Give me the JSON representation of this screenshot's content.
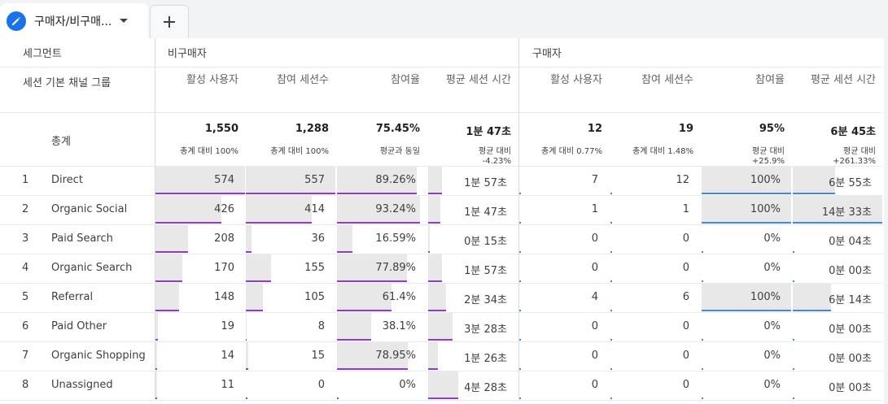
{
  "tab": {
    "label": "구매자/비구매..."
  },
  "segment_header": "세그먼트",
  "groups": [
    "비구매자",
    "구매자"
  ],
  "dimension_header": "세션 기본 채널 그룹",
  "metrics": [
    "활성 사용자",
    "참여 세션수",
    "참여율",
    "평균 세션 시간"
  ],
  "totals": {
    "label": "총계",
    "cells": [
      {
        "value": "1,550",
        "sub": "총계 대비 100%"
      },
      {
        "value": "1,288",
        "sub": "총계 대비 100%"
      },
      {
        "value": "75.45%",
        "sub": "평균과 동일"
      },
      {
        "value": "1분 47초",
        "sub": "평균 대비",
        "sub2": "-4.23%"
      },
      {
        "value": "12",
        "sub": "총계 대비 0.77%"
      },
      {
        "value": "19",
        "sub": "총계 대비 1.48%"
      },
      {
        "value": "95%",
        "sub": "평균 대비",
        "sub2": "+25.9%"
      },
      {
        "value": "6분 45초",
        "sub": "평균 대비",
        "sub2": "+261.33%"
      }
    ]
  },
  "accent": {
    "nonbuyer": "#9334e6",
    "buyer": "#4285f4",
    "bar_fill": "#e8e8e8"
  },
  "rows": [
    {
      "idx": "1",
      "channel": "Direct",
      "cells": [
        "574",
        "557",
        "89.26%",
        "1분 57초",
        "7",
        "12",
        "100%",
        "6분 55초"
      ],
      "fill": [
        1.0,
        1.0,
        0.89,
        0.15,
        0.0,
        0.0,
        1.0,
        0.47
      ]
    },
    {
      "idx": "2",
      "channel": "Organic Social",
      "cells": [
        "426",
        "414",
        "93.24%",
        "1분 47초",
        "1",
        "1",
        "100%",
        "14분 33초"
      ],
      "fill": [
        0.74,
        0.74,
        0.93,
        0.14,
        0.0,
        0.0,
        1.0,
        1.0
      ]
    },
    {
      "idx": "3",
      "channel": "Paid Search",
      "cells": [
        "208",
        "36",
        "16.59%",
        "0분 15초",
        "0",
        "0",
        "0%",
        "0분 04초"
      ],
      "fill": [
        0.36,
        0.06,
        0.17,
        0.02,
        0.0,
        0.0,
        0.0,
        0.0
      ]
    },
    {
      "idx": "4",
      "channel": "Organic Search",
      "cells": [
        "170",
        "155",
        "77.89%",
        "1분 57초",
        "0",
        "0",
        "0%",
        "0분 00초"
      ],
      "fill": [
        0.3,
        0.28,
        0.78,
        0.15,
        0.0,
        0.0,
        0.0,
        0.0
      ]
    },
    {
      "idx": "5",
      "channel": "Referral",
      "cells": [
        "148",
        "105",
        "61.4%",
        "2분 34초",
        "4",
        "6",
        "100%",
        "6분 14초"
      ],
      "fill": [
        0.26,
        0.19,
        0.61,
        0.2,
        0.0,
        0.0,
        1.0,
        0.43
      ]
    },
    {
      "idx": "6",
      "channel": "Paid Other",
      "cells": [
        "19",
        "8",
        "38.1%",
        "3분 28초",
        "0",
        "0",
        "0%",
        "0분 00초"
      ],
      "fill": [
        0.03,
        0.01,
        0.38,
        0.27,
        0.0,
        0.0,
        0.0,
        0.0
      ]
    },
    {
      "idx": "7",
      "channel": "Organic Shopping",
      "cells": [
        "14",
        "15",
        "78.95%",
        "1분 26초",
        "0",
        "0",
        "0%",
        "0분 00초"
      ],
      "fill": [
        0.02,
        0.03,
        0.79,
        0.11,
        0.0,
        0.0,
        0.0,
        0.0
      ]
    },
    {
      "idx": "8",
      "channel": "Unassigned",
      "cells": [
        "11",
        "0",
        "0%",
        "4분 28초",
        "0",
        "0",
        "0%",
        "0분 00초"
      ],
      "fill": [
        0.02,
        0.0,
        0.0,
        0.34,
        0.0,
        0.0,
        0.0,
        0.0
      ]
    }
  ]
}
